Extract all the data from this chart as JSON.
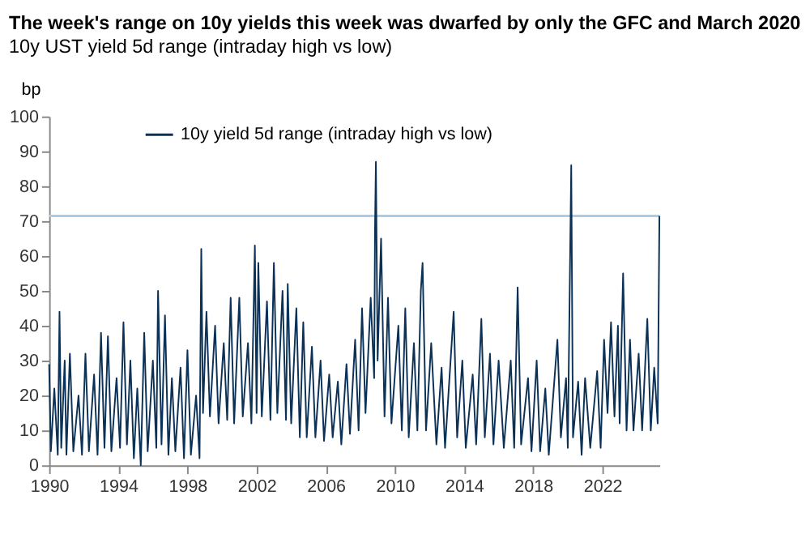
{
  "chart_data": {
    "type": "line",
    "title": "The week's range on 10y yields this week was dwarfed by only the GFC and March 2020",
    "subtitle": "10y UST yield 5d range (intraday high vs low)",
    "ylabel": "bp",
    "series": [
      {
        "name": "10y yield 5d range (intraday high vs low)",
        "color": "#0b3157",
        "x": [
          1990.0,
          1990.1,
          1990.3,
          1990.5,
          1990.6,
          1990.7,
          1990.9,
          1991.0,
          1991.2,
          1991.4,
          1991.7,
          1991.9,
          1992.1,
          1992.3,
          1992.6,
          1992.8,
          1993.0,
          1993.2,
          1993.4,
          1993.6,
          1993.9,
          1994.1,
          1994.3,
          1994.5,
          1994.7,
          1994.9,
          1995.1,
          1995.3,
          1995.5,
          1995.7,
          1996.0,
          1996.2,
          1996.3,
          1996.5,
          1996.7,
          1996.9,
          1997.1,
          1997.3,
          1997.6,
          1997.8,
          1998.0,
          1998.2,
          1998.5,
          1998.7,
          1998.8,
          1998.9,
          1999.1,
          1999.3,
          1999.6,
          1999.8,
          2000.1,
          2000.3,
          2000.5,
          2000.7,
          2001.0,
          2001.2,
          2001.5,
          2001.7,
          2001.9,
          2002.0,
          2002.1,
          2002.3,
          2002.6,
          2002.8,
          2003.0,
          2003.2,
          2003.5,
          2003.7,
          2003.8,
          2004.0,
          2004.3,
          2004.5,
          2004.7,
          2004.9,
          2005.2,
          2005.4,
          2005.7,
          2005.9,
          2006.2,
          2006.4,
          2006.7,
          2006.9,
          2007.2,
          2007.4,
          2007.7,
          2007.9,
          2008.1,
          2008.3,
          2008.6,
          2008.8,
          2008.85,
          2008.9,
          2009.0,
          2009.2,
          2009.4,
          2009.6,
          2009.8,
          2010.2,
          2010.4,
          2010.6,
          2010.8,
          2011.1,
          2011.3,
          2011.5,
          2011.6,
          2011.8,
          2012.1,
          2012.4,
          2012.7,
          2012.9,
          2013.4,
          2013.6,
          2013.9,
          2014.1,
          2014.5,
          2014.7,
          2015.0,
          2015.2,
          2015.5,
          2015.7,
          2016.0,
          2016.3,
          2016.7,
          2016.9,
          2017.1,
          2017.3,
          2017.7,
          2017.9,
          2018.2,
          2018.4,
          2018.7,
          2018.9,
          2019.4,
          2019.6,
          2019.9,
          2020.0,
          2020.2,
          2020.3,
          2020.6,
          2020.8,
          2021.0,
          2021.3,
          2021.7,
          2021.9,
          2022.1,
          2022.3,
          2022.5,
          2022.7,
          2022.9,
          2023.0,
          2023.2,
          2023.4,
          2023.6,
          2023.8,
          2024.1,
          2024.3,
          2024.6,
          2024.8,
          2025.0,
          2025.2,
          2025.3
        ],
        "values": [
          29,
          4,
          22,
          3,
          44,
          5,
          30,
          3,
          32,
          4,
          20,
          3,
          32,
          4,
          26,
          3,
          38,
          5,
          37,
          4,
          25,
          5,
          41,
          6,
          30,
          2,
          22,
          0,
          38,
          4,
          30,
          5,
          50,
          6,
          43,
          3,
          25,
          4,
          28,
          2,
          33,
          3,
          20,
          2,
          62,
          15,
          44,
          14,
          40,
          12,
          35,
          13,
          48,
          12,
          48,
          14,
          35,
          12,
          63,
          15,
          58,
          14,
          47,
          13,
          58,
          15,
          50,
          13,
          52,
          12,
          45,
          8,
          41,
          8,
          34,
          8,
          30,
          7,
          26,
          8,
          24,
          6,
          29,
          9,
          36,
          10,
          45,
          15,
          48,
          25,
          68,
          87,
          30,
          65,
          14,
          48,
          12,
          40,
          10,
          45,
          8,
          35,
          10,
          50,
          58,
          10,
          35,
          6,
          28,
          5,
          44,
          8,
          30,
          5,
          26,
          6,
          42,
          8,
          32,
          6,
          30,
          5,
          30,
          5,
          51,
          6,
          25,
          4,
          30,
          4,
          22,
          3,
          36,
          8,
          25,
          5,
          86,
          8,
          24,
          3,
          25,
          5,
          27,
          5,
          36,
          15,
          41,
          14,
          40,
          12,
          55,
          10,
          36,
          10,
          32,
          10,
          42,
          10,
          28,
          12,
          71.5
        ]
      }
    ],
    "xlim": [
      1990,
      2025.3
    ],
    "xticks": [
      1990,
      1994,
      1998,
      2002,
      2006,
      2010,
      2014,
      2018,
      2022
    ],
    "ylim": [
      0,
      100
    ],
    "yticks": [
      0,
      10,
      20,
      30,
      40,
      50,
      60,
      70,
      80,
      90,
      100
    ],
    "ref_lines": [
      {
        "axis": "y",
        "value": 71.5,
        "color": "#a8cdea"
      }
    ],
    "legend": "top",
    "grid": false
  }
}
